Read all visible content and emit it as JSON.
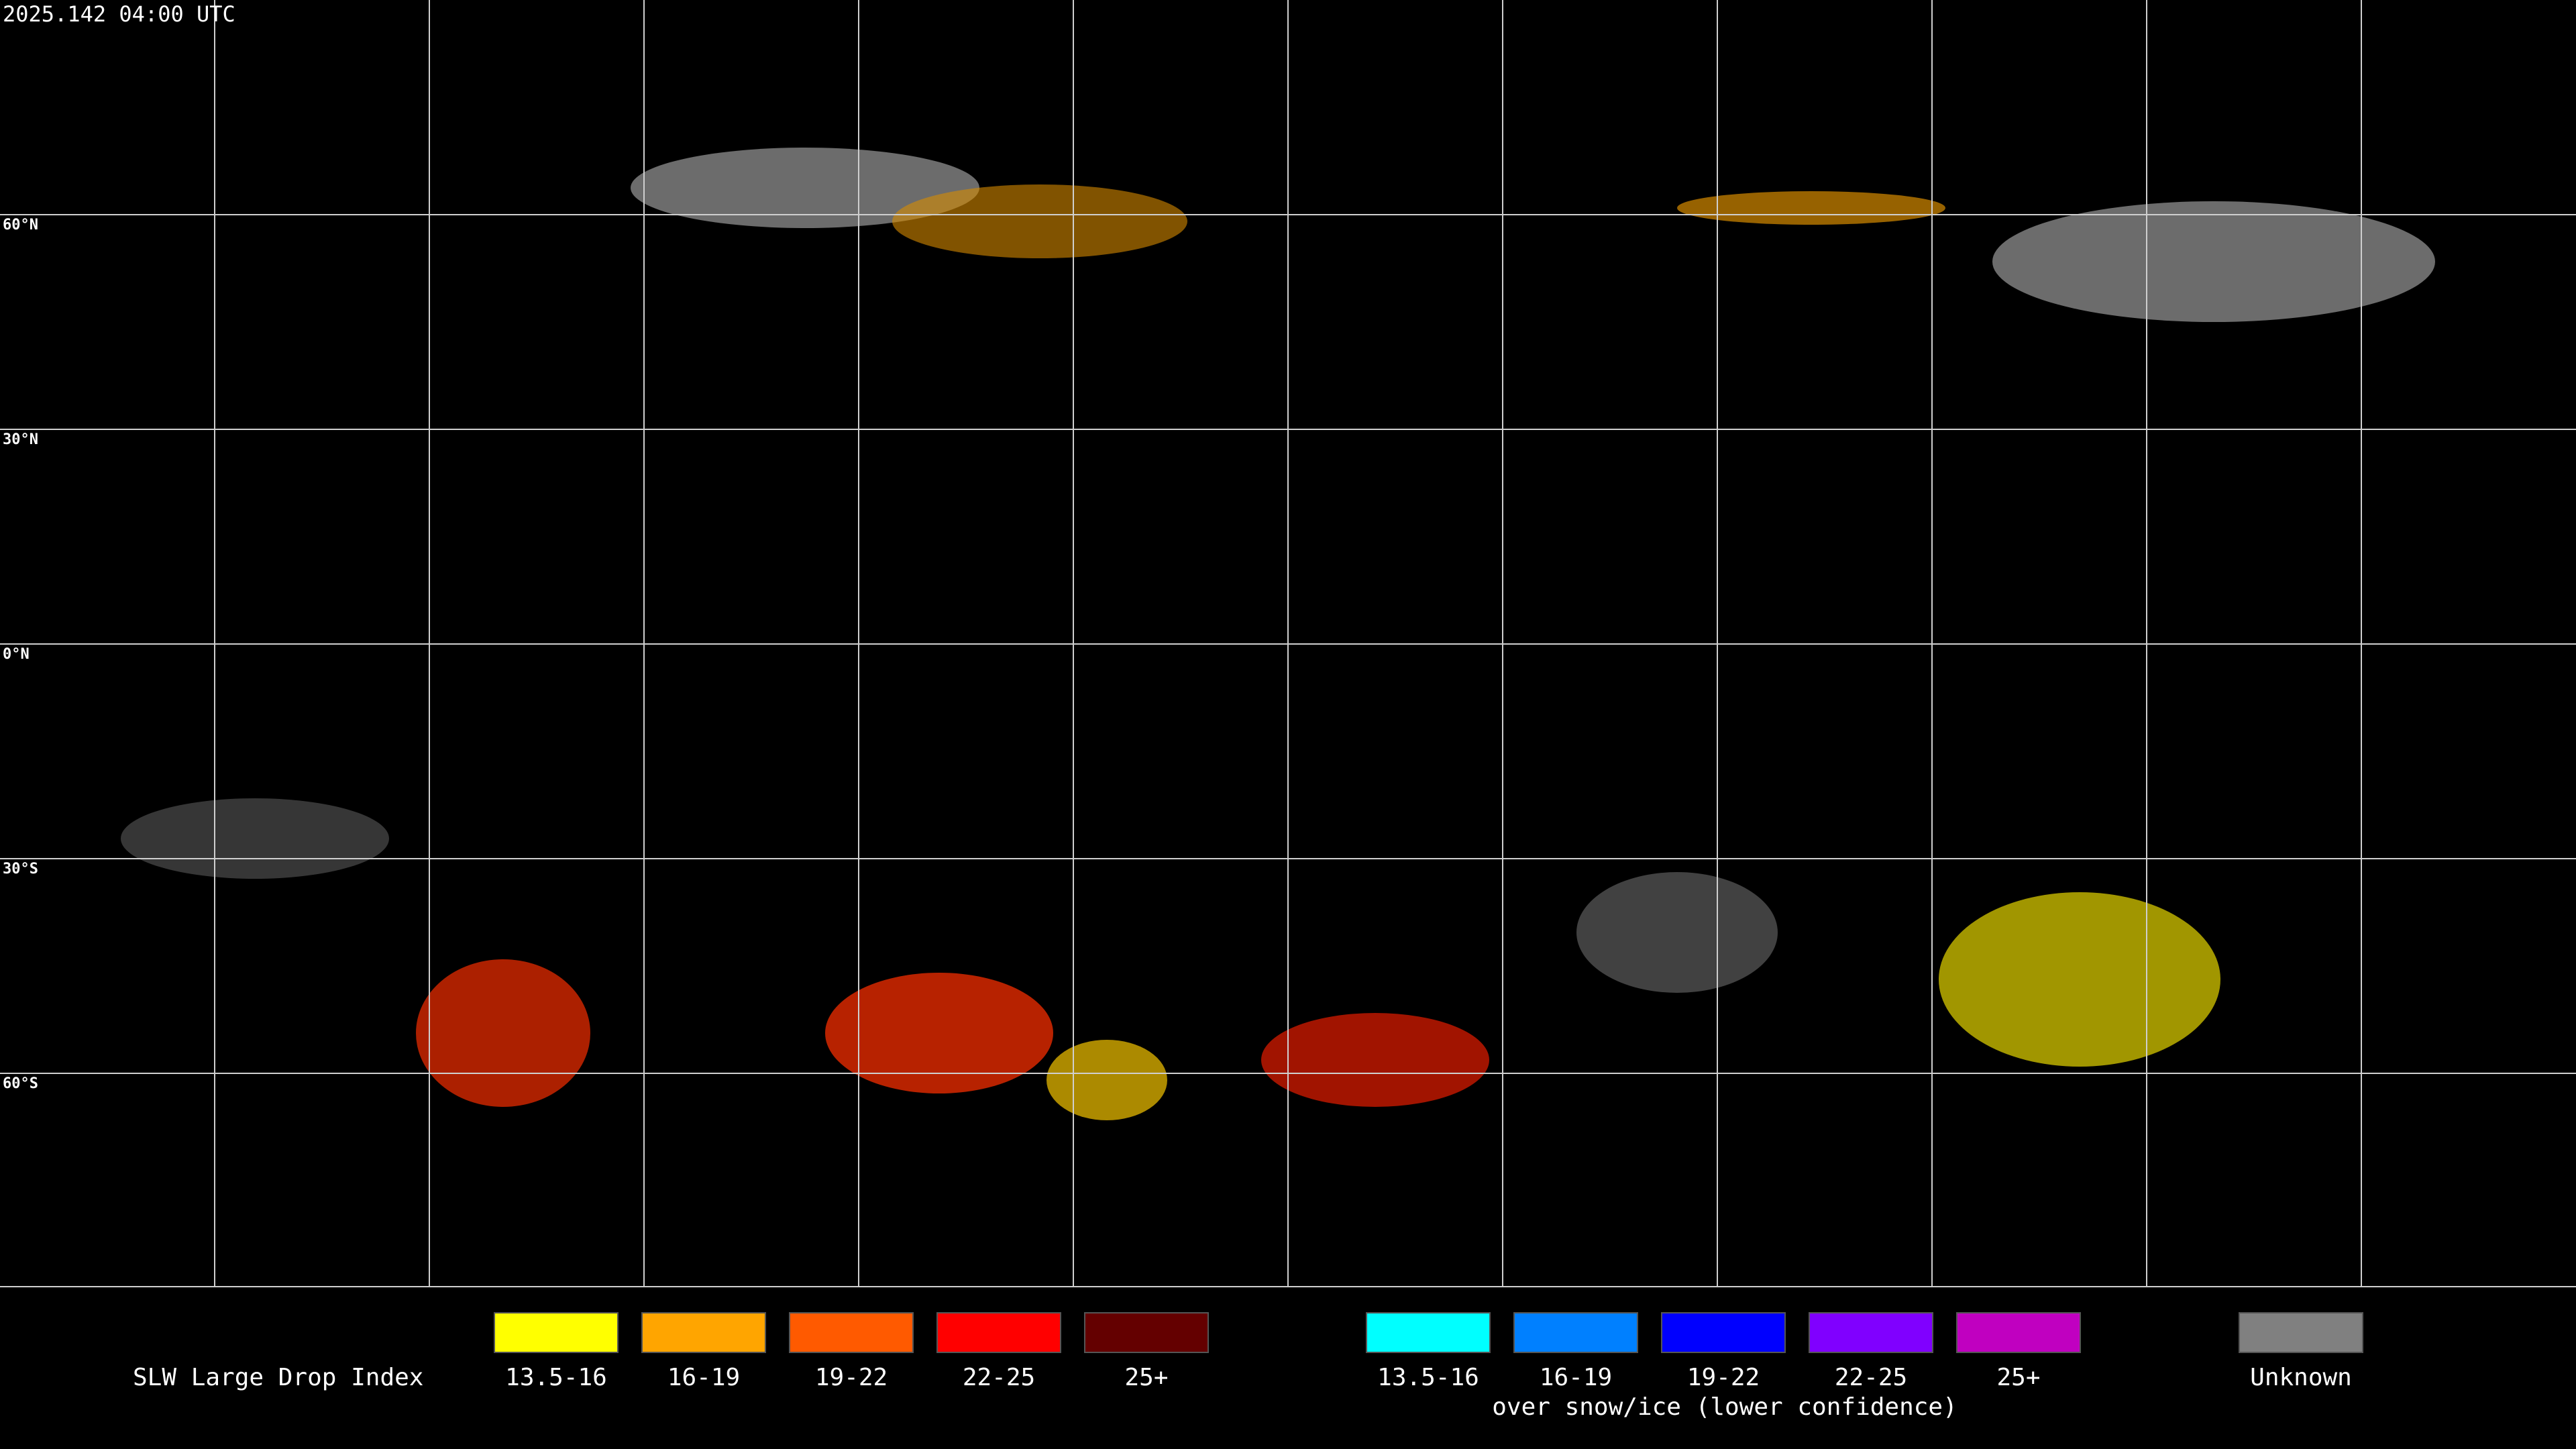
{
  "header": {
    "timestamp": "2025.142 04:00 UTC"
  },
  "map": {
    "latitude_labels": [
      "60°N",
      "30°N",
      "0°N",
      "30°S",
      "60°S"
    ]
  },
  "legend": {
    "title": "SLW Large Drop Index",
    "groups": [
      {
        "items": [
          {
            "label": "13.5-16",
            "color": "#ffff00"
          },
          {
            "label": "16-19",
            "color": "#ffa500"
          },
          {
            "label": "19-22",
            "color": "#ff5a00"
          },
          {
            "label": "22-25",
            "color": "#ff0000"
          },
          {
            "label": "25+",
            "color": "#640000"
          }
        ]
      },
      {
        "items": [
          {
            "label": "13.5-16",
            "color": "#00ffff"
          },
          {
            "label": "16-19",
            "color": "#0080ff"
          },
          {
            "label": "19-22",
            "color": "#0000ff"
          },
          {
            "label": "22-25",
            "color": "#8000ff"
          },
          {
            "label": "25+",
            "color": "#c000c0"
          }
        ],
        "caption": "over snow/ice (lower confidence)"
      }
    ],
    "unknown": {
      "label": "Unknown",
      "color": "#808080"
    }
  }
}
